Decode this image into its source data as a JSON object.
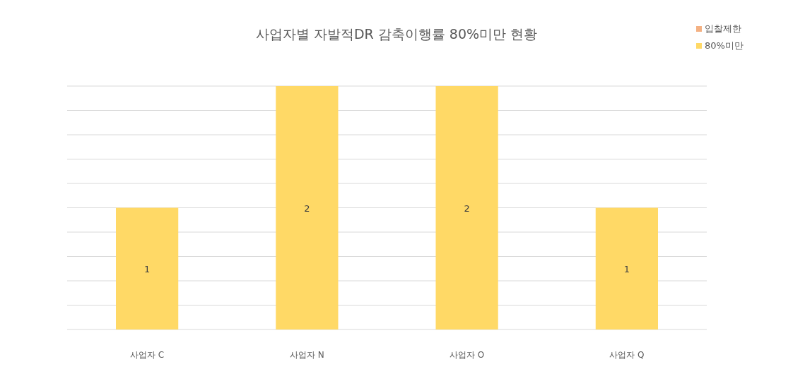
{
  "chart_data": {
    "type": "bar",
    "title": "사업자별 자발적DR 감축이행률 80%미만 현황",
    "categories": [
      "사업자 C",
      "사업자 N",
      "사업자 O",
      "사업자 Q"
    ],
    "series": [
      {
        "name": "입찰제한",
        "color": "#f4b183",
        "values": [
          null,
          null,
          null,
          null
        ]
      },
      {
        "name": "80%미만",
        "color": "#ffd966",
        "values": [
          1,
          2,
          2,
          1
        ]
      }
    ],
    "stacked": true,
    "ylim": [
      0,
      2
    ],
    "yticks": [
      {
        "value": 0,
        "label": null
      },
      {
        "value": 0.2,
        "label": null
      },
      {
        "value": 0.4,
        "label": null
      },
      {
        "value": 0.6,
        "label": null
      },
      {
        "value": 0.8,
        "label": null
      },
      {
        "value": 1,
        "label": null
      },
      {
        "value": 1.2,
        "label": null
      },
      {
        "value": 1.4,
        "label": null
      },
      {
        "value": 1.6,
        "label": null
      },
      {
        "value": 1.8,
        "label": null
      },
      {
        "value": 2,
        "label": null
      }
    ],
    "grid": "y",
    "legend": "top right",
    "data_labels": true,
    "tick_labels": "x"
  }
}
